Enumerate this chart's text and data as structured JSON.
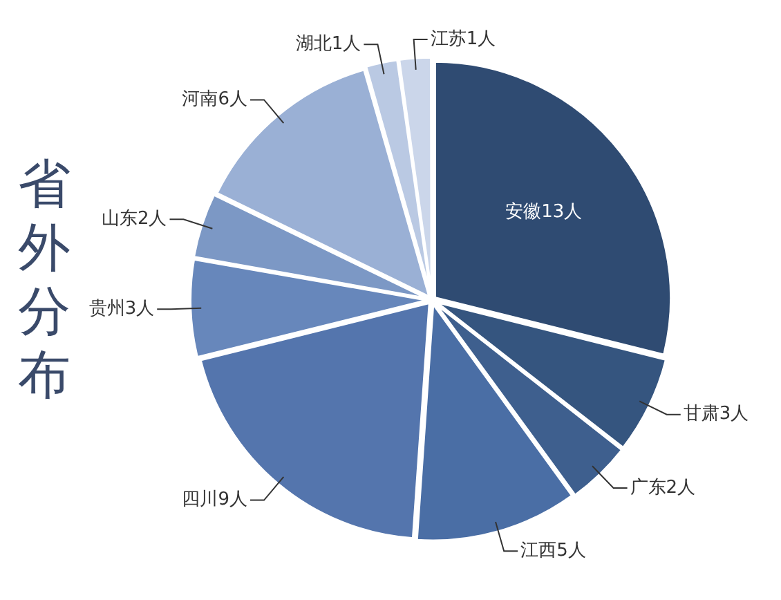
{
  "chart_data": {
    "type": "pie",
    "title": "省外分布",
    "categories": [
      "安徽",
      "甘肃",
      "广东",
      "江西",
      "四川",
      "贵州",
      "山东",
      "河南",
      "湖北",
      "江苏"
    ],
    "values": [
      13,
      3,
      2,
      5,
      9,
      3,
      2,
      6,
      1,
      1
    ],
    "value_labels": [
      "13人",
      "3人",
      "2人",
      "5人",
      "9人",
      "3人",
      "2人",
      "6人",
      "1人",
      "1人"
    ],
    "colors": [
      "#2f4b72",
      "#35557f",
      "#3e5f8e",
      "#4a6ea5",
      "#5475ad",
      "#6787bb",
      "#7c98c5",
      "#9ab0d5",
      "#bac9e3",
      "#cbd6ea"
    ],
    "legend": false
  }
}
